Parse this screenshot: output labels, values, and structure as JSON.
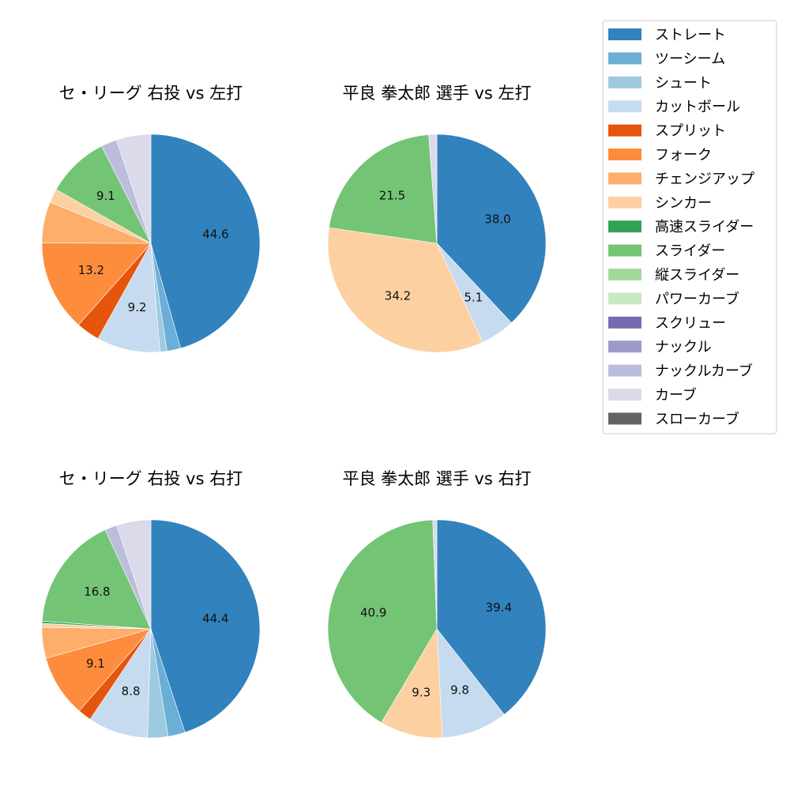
{
  "legend": [
    {
      "name": "ストレート",
      "color": "#3182bd"
    },
    {
      "name": "ツーシーム",
      "color": "#6baed6"
    },
    {
      "name": "シュート",
      "color": "#9ecae1"
    },
    {
      "name": "カットボール",
      "color": "#c6dbef"
    },
    {
      "name": "スプリット",
      "color": "#e6550d"
    },
    {
      "name": "フォーク",
      "color": "#fd8d3c"
    },
    {
      "name": "チェンジアップ",
      "color": "#fdae6b"
    },
    {
      "name": "シンカー",
      "color": "#fdd0a2"
    },
    {
      "name": "高速スライダー",
      "color": "#31a354"
    },
    {
      "name": "スライダー",
      "color": "#74c476"
    },
    {
      "name": "縦スライダー",
      "color": "#a1d99b"
    },
    {
      "name": "パワーカーブ",
      "color": "#c7e9c0"
    },
    {
      "name": "スクリュー",
      "color": "#756bb1"
    },
    {
      "name": "ナックル",
      "color": "#9e9ac8"
    },
    {
      "name": "ナックルカーブ",
      "color": "#bcbddc"
    },
    {
      "name": "カーブ",
      "color": "#dadaeb"
    },
    {
      "name": "スローカーブ",
      "color": "#636363"
    }
  ],
  "chart_data": [
    {
      "type": "pie",
      "title": "セ・リーグ 右投 vs 左打",
      "slices": [
        {
          "name": "ストレート",
          "value": 44.6,
          "label": "44.6"
        },
        {
          "name": "ツーシーム",
          "value": 2.0
        },
        {
          "name": "シュート",
          "value": 1.0
        },
        {
          "name": "カットボール",
          "value": 9.2,
          "label": "9.2"
        },
        {
          "name": "スプリット",
          "value": 3.4
        },
        {
          "name": "フォーク",
          "value": 13.2,
          "label": "13.2"
        },
        {
          "name": "チェンジアップ",
          "value": 6.0
        },
        {
          "name": "シンカー",
          "value": 2.0
        },
        {
          "name": "スライダー",
          "value": 9.1,
          "label": "9.1"
        },
        {
          "name": "ナックルカーブ",
          "value": 2.3
        },
        {
          "name": "カーブ",
          "value": 5.0
        }
      ]
    },
    {
      "type": "pie",
      "title": "平良 拳太郎 選手 vs 左打",
      "slices": [
        {
          "name": "ストレート",
          "value": 38.0,
          "label": "38.0"
        },
        {
          "name": "カットボール",
          "value": 5.1,
          "label": "5.1"
        },
        {
          "name": "シンカー",
          "value": 34.2,
          "label": "34.2"
        },
        {
          "name": "スライダー",
          "value": 21.5,
          "label": "21.5"
        },
        {
          "name": "カーブ",
          "value": 1.2
        }
      ]
    },
    {
      "type": "pie",
      "title": "セ・リーグ 右投 vs 右打",
      "slices": [
        {
          "name": "ストレート",
          "value": 44.4,
          "label": "44.4"
        },
        {
          "name": "ツーシーム",
          "value": 2.5
        },
        {
          "name": "シュート",
          "value": 3.0
        },
        {
          "name": "カットボール",
          "value": 8.8,
          "label": "8.8"
        },
        {
          "name": "スプリット",
          "value": 2.0
        },
        {
          "name": "フォーク",
          "value": 9.1,
          "label": "9.1"
        },
        {
          "name": "チェンジアップ",
          "value": 4.5
        },
        {
          "name": "シンカー",
          "value": 0.6
        },
        {
          "name": "高速スライダー",
          "value": 0.3
        },
        {
          "name": "スライダー",
          "value": 16.8,
          "label": "16.8"
        },
        {
          "name": "ナックルカーブ",
          "value": 1.8
        },
        {
          "name": "カーブ",
          "value": 5.0
        }
      ]
    },
    {
      "type": "pie",
      "title": "平良 拳太郎 選手 vs 右打",
      "slices": [
        {
          "name": "ストレート",
          "value": 39.4,
          "label": "39.4"
        },
        {
          "name": "カットボール",
          "value": 9.8,
          "label": "9.8"
        },
        {
          "name": "シンカー",
          "value": 9.3,
          "label": "9.3"
        },
        {
          "name": "スライダー",
          "value": 40.9,
          "label": "40.9"
        },
        {
          "name": "カーブ",
          "value": 0.6
        }
      ]
    }
  ]
}
